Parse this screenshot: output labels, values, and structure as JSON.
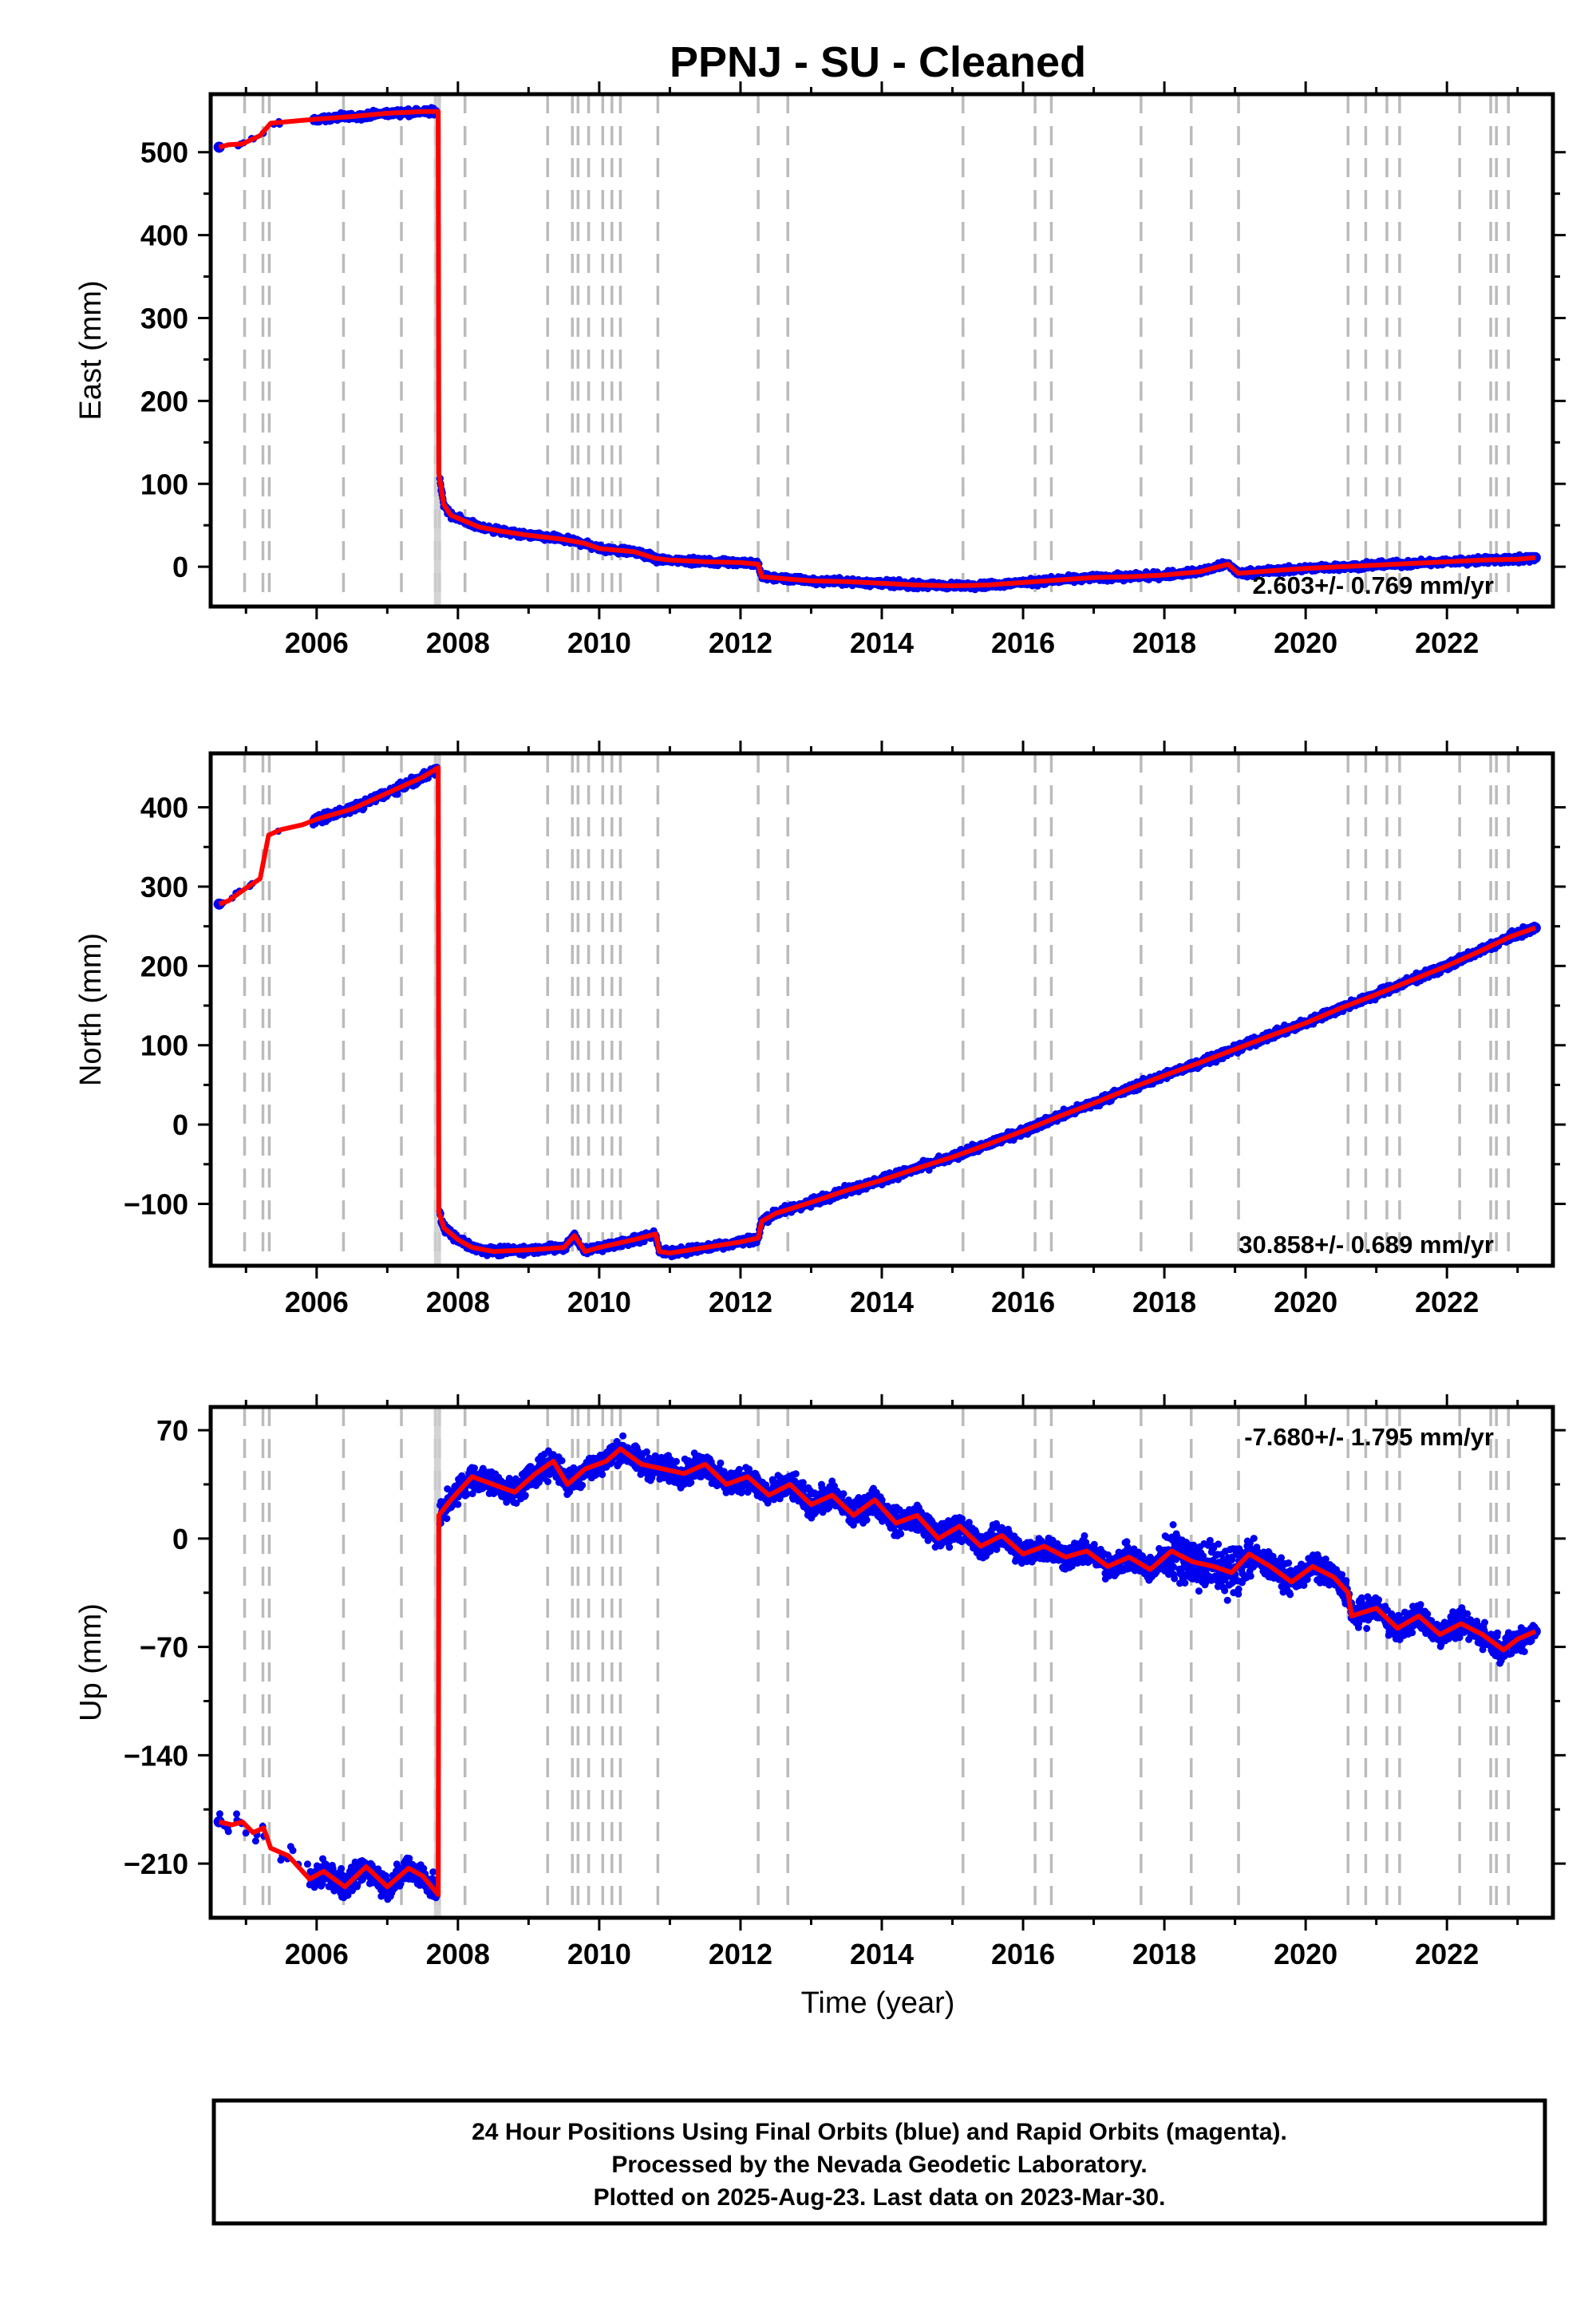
{
  "title": "PPNJ  - SU - Cleaned",
  "colors": {
    "final_orbits": "#0000ee",
    "model": "#ff0000",
    "offset_lines": "#bbbbbb"
  },
  "offset_line_years": [
    2004.98,
    2005.24,
    2005.33,
    2006.38,
    2007.2,
    2007.68,
    2007.74,
    2008.1,
    2009.27,
    2009.62,
    2009.7,
    2009.85,
    2010.05,
    2010.18,
    2010.3,
    2010.83,
    2012.25,
    2012.67,
    2015.15,
    2016.17,
    2016.4,
    2017.67,
    2018.38,
    2019.05,
    2020.6,
    2020.85,
    2021.15,
    2021.33,
    2022.18,
    2022.62,
    2022.7,
    2022.87
  ],
  "chart_data": [
    {
      "type": "scatter",
      "ylabel": "East (mm)",
      "xlim": [
        2004.5,
        2023.5
      ],
      "ylim": [
        -48,
        570
      ],
      "x_ticks": [
        2006,
        2008,
        2010,
        2012,
        2014,
        2016,
        2018,
        2020,
        2022
      ],
      "y_ticks": [
        0,
        100,
        200,
        300,
        400,
        500
      ],
      "y_tick_labels": [
        "0",
        "100",
        "200",
        "300",
        "400",
        "500"
      ],
      "rate_text": "2.603+/- 0.769 mm/yr",
      "rate_position": "bottom-right",
      "series": [
        {
          "values": [
            [
              2004.62,
              506
            ],
            [
              2004.75,
              509
            ],
            [
              2004.95,
              510
            ],
            [
              2005.2,
              520
            ],
            [
              2005.35,
              535
            ],
            [
              2006.0,
              540
            ],
            [
              2006.5,
              543
            ],
            [
              2007.0,
              547
            ],
            [
              2007.5,
              549
            ],
            [
              2007.72,
              549
            ],
            [
              2007.73,
              113
            ],
            [
              2007.8,
              75
            ],
            [
              2007.9,
              62
            ],
            [
              2008.1,
              55
            ],
            [
              2008.3,
              48
            ],
            [
              2008.6,
              43
            ],
            [
              2009.0,
              38
            ],
            [
              2009.5,
              33
            ],
            [
              2009.8,
              28
            ],
            [
              2010.0,
              22
            ],
            [
              2010.5,
              18
            ],
            [
              2010.8,
              10
            ],
            [
              2011.0,
              8
            ],
            [
              2011.5,
              6
            ],
            [
              2012.0,
              5
            ],
            [
              2012.25,
              3
            ],
            [
              2012.3,
              -12
            ],
            [
              2012.7,
              -15
            ],
            [
              2013.0,
              -17
            ],
            [
              2013.5,
              -18
            ],
            [
              2014.0,
              -20
            ],
            [
              2014.5,
              -22
            ],
            [
              2015.0,
              -23
            ],
            [
              2015.5,
              -22
            ],
            [
              2016.0,
              -19
            ],
            [
              2016.5,
              -16
            ],
            [
              2017.0,
              -13
            ],
            [
              2017.5,
              -12
            ],
            [
              2018.0,
              -10
            ],
            [
              2018.5,
              -6
            ],
            [
              2018.9,
              3
            ],
            [
              2019.05,
              -8
            ],
            [
              2019.5,
              -5
            ],
            [
              2020.0,
              -2
            ],
            [
              2020.5,
              0
            ],
            [
              2021.0,
              2
            ],
            [
              2021.5,
              4
            ],
            [
              2022.0,
              6
            ],
            [
              2022.5,
              8
            ],
            [
              2023.0,
              9
            ],
            [
              2023.25,
              11
            ]
          ]
        }
      ]
    },
    {
      "type": "scatter",
      "ylabel": "North (mm)",
      "xlim": [
        2004.5,
        2023.5
      ],
      "ylim": [
        -178,
        468
      ],
      "x_ticks": [
        2006,
        2008,
        2010,
        2012,
        2014,
        2016,
        2018,
        2020,
        2022
      ],
      "y_ticks": [
        -100,
        0,
        100,
        200,
        300,
        400
      ],
      "y_tick_labels": [
        "−100",
        "0",
        "100",
        "200",
        "300",
        "400"
      ],
      "rate_text": "30.858+/- 0.689 mm/yr",
      "rate_position": "bottom-right",
      "series": [
        {
          "values": [
            [
              2004.62,
              278
            ],
            [
              2004.75,
              282
            ],
            [
              2004.95,
              295
            ],
            [
              2005.2,
              310
            ],
            [
              2005.32,
              365
            ],
            [
              2005.5,
              372
            ],
            [
              2005.8,
              378
            ],
            [
              2006.0,
              385
            ],
            [
              2006.5,
              398
            ],
            [
              2007.0,
              418
            ],
            [
              2007.5,
              438
            ],
            [
              2007.72,
              450
            ],
            [
              2007.73,
              -110
            ],
            [
              2007.8,
              -130
            ],
            [
              2008.0,
              -145
            ],
            [
              2008.2,
              -155
            ],
            [
              2008.5,
              -160
            ],
            [
              2009.0,
              -158
            ],
            [
              2009.5,
              -155
            ],
            [
              2009.65,
              -140
            ],
            [
              2009.8,
              -160
            ],
            [
              2010.0,
              -155
            ],
            [
              2010.5,
              -145
            ],
            [
              2010.8,
              -138
            ],
            [
              2010.85,
              -160
            ],
            [
              2011.0,
              -162
            ],
            [
              2011.5,
              -155
            ],
            [
              2012.0,
              -148
            ],
            [
              2012.25,
              -143
            ],
            [
              2012.3,
              -122
            ],
            [
              2012.5,
              -112
            ],
            [
              2013.0,
              -98
            ],
            [
              2013.5,
              -83
            ],
            [
              2014.0,
              -70
            ],
            [
              2014.5,
              -55
            ],
            [
              2015.0,
              -41
            ],
            [
              2015.5,
              -25
            ],
            [
              2016.0,
              -8
            ],
            [
              2016.5,
              10
            ],
            [
              2017.0,
              27
            ],
            [
              2017.5,
              45
            ],
            [
              2018.0,
              62
            ],
            [
              2018.5,
              78
            ],
            [
              2019.0,
              95
            ],
            [
              2019.5,
              112
            ],
            [
              2020.0,
              128
            ],
            [
              2020.5,
              147
            ],
            [
              2021.0,
              164
            ],
            [
              2021.5,
              182
            ],
            [
              2022.0,
              200
            ],
            [
              2022.5,
              220
            ],
            [
              2022.9,
              237
            ],
            [
              2023.25,
              248
            ]
          ]
        }
      ]
    },
    {
      "type": "scatter",
      "ylabel": "Up (mm)",
      "xlim": [
        2004.5,
        2023.5
      ],
      "ylim": [
        -245,
        85
      ],
      "x_ticks": [
        2006,
        2008,
        2010,
        2012,
        2014,
        2016,
        2018,
        2020,
        2022
      ],
      "y_ticks": [
        70,
        0,
        -70,
        -140,
        -210
      ],
      "y_tick_labels": [
        "70",
        "0",
        "−70",
        "−140",
        "−210"
      ],
      "xlabel": "Time (year)",
      "rate_text": "-7.680+/- 1.795 mm/yr",
      "rate_position": "top-right",
      "series": [
        {
          "values": [
            [
              2004.62,
              -183
            ],
            [
              2004.8,
              -185
            ],
            [
              2004.95,
              -183
            ],
            [
              2005.1,
              -190
            ],
            [
              2005.25,
              -187
            ],
            [
              2005.35,
              -200
            ],
            [
              2005.6,
              -205
            ],
            [
              2005.9,
              -220
            ],
            [
              2006.1,
              -215
            ],
            [
              2006.4,
              -225
            ],
            [
              2006.7,
              -212
            ],
            [
              2007.0,
              -225
            ],
            [
              2007.3,
              -213
            ],
            [
              2007.5,
              -218
            ],
            [
              2007.72,
              -230
            ],
            [
              2007.73,
              15
            ],
            [
              2007.9,
              25
            ],
            [
              2008.2,
              40
            ],
            [
              2008.5,
              35
            ],
            [
              2008.8,
              30
            ],
            [
              2009.1,
              42
            ],
            [
              2009.35,
              50
            ],
            [
              2009.55,
              35
            ],
            [
              2009.8,
              45
            ],
            [
              2010.1,
              50
            ],
            [
              2010.3,
              58
            ],
            [
              2010.6,
              48
            ],
            [
              2010.9,
              45
            ],
            [
              2011.2,
              42
            ],
            [
              2011.5,
              48
            ],
            [
              2011.8,
              35
            ],
            [
              2012.1,
              40
            ],
            [
              2012.4,
              28
            ],
            [
              2012.7,
              35
            ],
            [
              2013.0,
              22
            ],
            [
              2013.3,
              28
            ],
            [
              2013.6,
              15
            ],
            [
              2013.9,
              25
            ],
            [
              2014.2,
              10
            ],
            [
              2014.5,
              15
            ],
            [
              2014.8,
              0
            ],
            [
              2015.1,
              8
            ],
            [
              2015.4,
              -5
            ],
            [
              2015.7,
              2
            ],
            [
              2016.0,
              -10
            ],
            [
              2016.3,
              -5
            ],
            [
              2016.6,
              -12
            ],
            [
              2016.9,
              -8
            ],
            [
              2017.2,
              -18
            ],
            [
              2017.5,
              -12
            ],
            [
              2017.8,
              -20
            ],
            [
              2018.1,
              -8
            ],
            [
              2018.4,
              -15
            ],
            [
              2018.7,
              -18
            ],
            [
              2018.95,
              -22
            ],
            [
              2019.2,
              -10
            ],
            [
              2019.5,
              -18
            ],
            [
              2019.8,
              -28
            ],
            [
              2020.1,
              -18
            ],
            [
              2020.4,
              -25
            ],
            [
              2020.6,
              -35
            ],
            [
              2020.65,
              -50
            ],
            [
              2021.0,
              -45
            ],
            [
              2021.3,
              -58
            ],
            [
              2021.6,
              -50
            ],
            [
              2021.9,
              -62
            ],
            [
              2022.2,
              -55
            ],
            [
              2022.5,
              -62
            ],
            [
              2022.8,
              -72
            ],
            [
              2023.0,
              -65
            ],
            [
              2023.25,
              -60
            ]
          ]
        }
      ]
    }
  ],
  "footer": {
    "line1": "24 Hour Positions Using Final Orbits (blue) and Rapid Orbits (magenta).",
    "line2": "Processed by the Nevada Geodetic Laboratory.",
    "line3": "Plotted on 2025-Aug-23. Last data on 2023-Mar-30."
  }
}
